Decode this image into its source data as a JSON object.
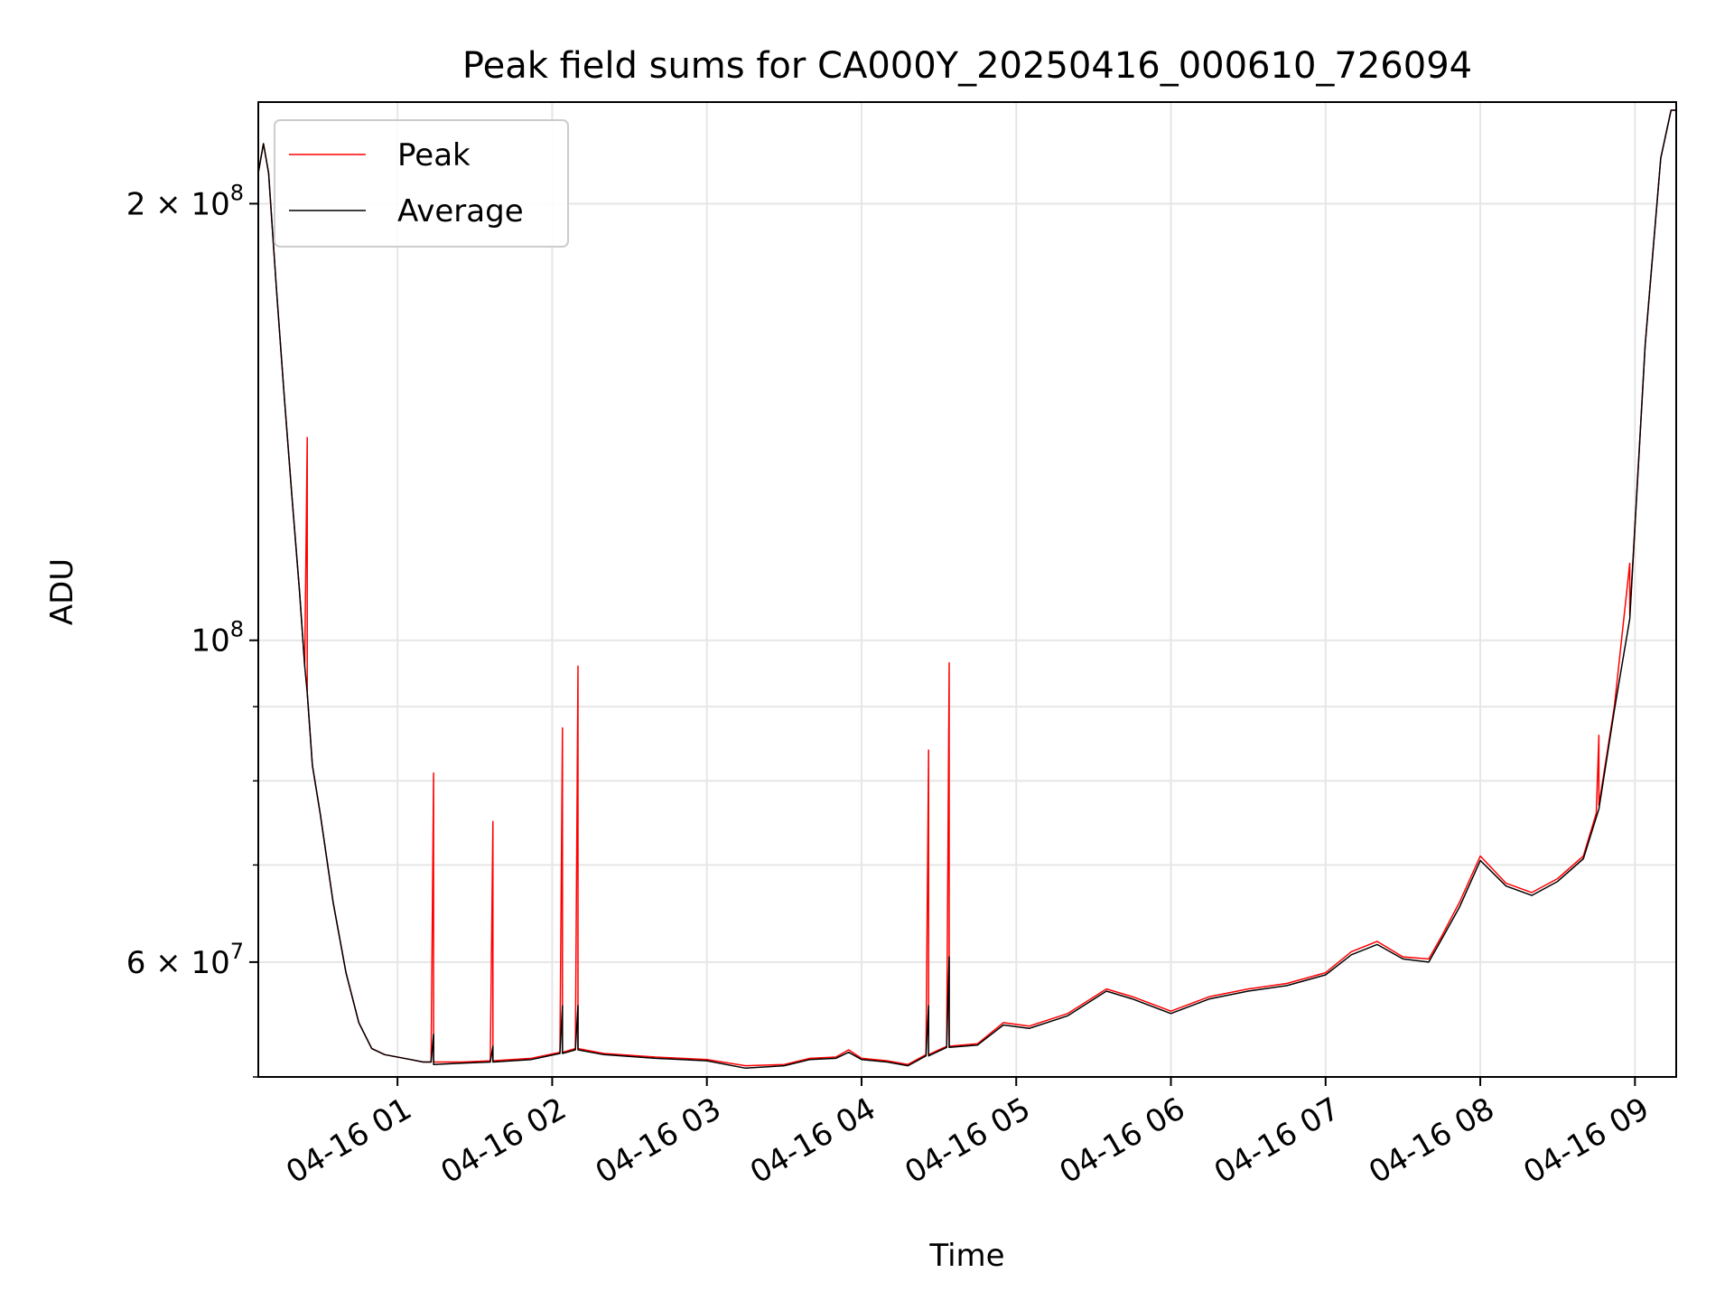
{
  "chart_data": {
    "type": "line",
    "title": "Peak field sums for CA000Y_20250416_000610_726094",
    "xlabel": "Time",
    "ylabel": "ADU",
    "y_scale": "log",
    "ylim": [
      50000000,
      235000000
    ],
    "xlim": [
      "2025-04-16 00:06",
      "2025-04-16 09:16"
    ],
    "grid": true,
    "legend_position": "upper left",
    "x_ticks": [
      {
        "t": "2025-04-16 01:00",
        "label": "04-16 01"
      },
      {
        "t": "2025-04-16 02:00",
        "label": "04-16 02"
      },
      {
        "t": "2025-04-16 03:00",
        "label": "04-16 03"
      },
      {
        "t": "2025-04-16 04:00",
        "label": "04-16 04"
      },
      {
        "t": "2025-04-16 05:00",
        "label": "04-16 05"
      },
      {
        "t": "2025-04-16 06:00",
        "label": "04-16 06"
      },
      {
        "t": "2025-04-16 07:00",
        "label": "04-16 07"
      },
      {
        "t": "2025-04-16 08:00",
        "label": "04-16 08"
      },
      {
        "t": "2025-04-16 09:00",
        "label": "04-16 09"
      }
    ],
    "y_ticks": [
      {
        "value": 200000000,
        "base": "2 × 10",
        "exp": "8"
      },
      {
        "value": 100000000,
        "base": "10",
        "exp": "8"
      },
      {
        "value": 60000000,
        "base": "6 × 10",
        "exp": "7"
      }
    ],
    "y_minor_ticks": [
      50000000,
      70000000,
      80000000,
      90000000
    ],
    "series": [
      {
        "name": "Peak",
        "color": "#ff0000",
        "points": [
          [
            "2025-04-16 00:06",
            210000000
          ],
          [
            "2025-04-16 00:08",
            220000000
          ],
          [
            "2025-04-16 00:10",
            210000000
          ],
          [
            "2025-04-16 00:13",
            175000000
          ],
          [
            "2025-04-16 00:16",
            148000000
          ],
          [
            "2025-04-16 00:19",
            126000000
          ],
          [
            "2025-04-16 00:22",
            108000000
          ],
          [
            "2025-04-16 00:24",
            96000000
          ],
          [
            "2025-04-16 00:25",
            138000000
          ],
          [
            "2025-04-16 00:25",
            92000000
          ],
          [
            "2025-04-16 00:27",
            82000000
          ],
          [
            "2025-04-16 00:30",
            76000000
          ],
          [
            "2025-04-16 00:35",
            66000000
          ],
          [
            "2025-04-16 00:40",
            59000000
          ],
          [
            "2025-04-16 00:45",
            54500000
          ],
          [
            "2025-04-16 00:50",
            52300000
          ],
          [
            "2025-04-16 00:55",
            51800000
          ],
          [
            "2025-04-16 01:05",
            51400000
          ],
          [
            "2025-04-16 01:10",
            51200000
          ],
          [
            "2025-04-16 01:13",
            51200000
          ],
          [
            "2025-04-16 01:14",
            81000000
          ],
          [
            "2025-04-16 01:14",
            51200000
          ],
          [
            "2025-04-16 01:25",
            51200000
          ],
          [
            "2025-04-16 01:36",
            51300000
          ],
          [
            "2025-04-16 01:37",
            75000000
          ],
          [
            "2025-04-16 01:37",
            51300000
          ],
          [
            "2025-04-16 01:52",
            51500000
          ],
          [
            "2025-04-16 02:03",
            52000000
          ],
          [
            "2025-04-16 02:04",
            87000000
          ],
          [
            "2025-04-16 02:04",
            52000000
          ],
          [
            "2025-04-16 02:09",
            52300000
          ],
          [
            "2025-04-16 02:10",
            96000000
          ],
          [
            "2025-04-16 02:10",
            52300000
          ],
          [
            "2025-04-16 02:20",
            51900000
          ],
          [
            "2025-04-16 02:40",
            51600000
          ],
          [
            "2025-04-16 03:00",
            51400000
          ],
          [
            "2025-04-16 03:15",
            50900000
          ],
          [
            "2025-04-16 03:30",
            51000000
          ],
          [
            "2025-04-16 03:40",
            51500000
          ],
          [
            "2025-04-16 03:50",
            51600000
          ],
          [
            "2025-04-16 03:55",
            52200000
          ],
          [
            "2025-04-16 04:00",
            51500000
          ],
          [
            "2025-04-16 04:10",
            51300000
          ],
          [
            "2025-04-16 04:18",
            51000000
          ],
          [
            "2025-04-16 04:25",
            51800000
          ],
          [
            "2025-04-16 04:26",
            84000000
          ],
          [
            "2025-04-16 04:26",
            51800000
          ],
          [
            "2025-04-16 04:33",
            52500000
          ],
          [
            "2025-04-16 04:34",
            96500000
          ],
          [
            "2025-04-16 04:34",
            52500000
          ],
          [
            "2025-04-16 04:45",
            52700000
          ],
          [
            "2025-04-16 04:55",
            54500000
          ],
          [
            "2025-04-16 05:05",
            54200000
          ],
          [
            "2025-04-16 05:20",
            55300000
          ],
          [
            "2025-04-16 05:35",
            57500000
          ],
          [
            "2025-04-16 05:45",
            56800000
          ],
          [
            "2025-04-16 06:00",
            55500000
          ],
          [
            "2025-04-16 06:15",
            56800000
          ],
          [
            "2025-04-16 06:30",
            57500000
          ],
          [
            "2025-04-16 06:45",
            58000000
          ],
          [
            "2025-04-16 07:00",
            59000000
          ],
          [
            "2025-04-16 07:10",
            61000000
          ],
          [
            "2025-04-16 07:20",
            62000000
          ],
          [
            "2025-04-16 07:30",
            60500000
          ],
          [
            "2025-04-16 07:40",
            60300000
          ],
          [
            "2025-04-16 07:45",
            62500000
          ],
          [
            "2025-04-16 07:52",
            66000000
          ],
          [
            "2025-04-16 08:00",
            71000000
          ],
          [
            "2025-04-16 08:10",
            68000000
          ],
          [
            "2025-04-16 08:20",
            67000000
          ],
          [
            "2025-04-16 08:30",
            68500000
          ],
          [
            "2025-04-16 08:40",
            71000000
          ],
          [
            "2025-04-16 08:45",
            76000000
          ],
          [
            "2025-04-16 08:46",
            86000000
          ],
          [
            "2025-04-16 08:46",
            77000000
          ],
          [
            "2025-04-16 08:52",
            90000000
          ],
          [
            "2025-04-16 08:58",
            113000000
          ],
          [
            "2025-04-16 08:58",
            104000000
          ],
          [
            "2025-04-16 09:04",
            160000000
          ],
          [
            "2025-04-16 09:10",
            215000000
          ],
          [
            "2025-04-16 09:14",
            232000000
          ],
          [
            "2025-04-16 09:16",
            232000000
          ]
        ]
      },
      {
        "name": "Average",
        "color": "#000000",
        "points": [
          [
            "2025-04-16 00:06",
            210000000
          ],
          [
            "2025-04-16 00:08",
            220000000
          ],
          [
            "2025-04-16 00:10",
            210000000
          ],
          [
            "2025-04-16 00:13",
            175000000
          ],
          [
            "2025-04-16 00:16",
            148000000
          ],
          [
            "2025-04-16 00:19",
            126000000
          ],
          [
            "2025-04-16 00:22",
            108000000
          ],
          [
            "2025-04-16 00:24",
            96000000
          ],
          [
            "2025-04-16 00:25",
            92000000
          ],
          [
            "2025-04-16 00:27",
            82000000
          ],
          [
            "2025-04-16 00:30",
            76000000
          ],
          [
            "2025-04-16 00:35",
            66000000
          ],
          [
            "2025-04-16 00:40",
            59000000
          ],
          [
            "2025-04-16 00:45",
            54500000
          ],
          [
            "2025-04-16 00:50",
            52300000
          ],
          [
            "2025-04-16 00:55",
            51800000
          ],
          [
            "2025-04-16 01:05",
            51400000
          ],
          [
            "2025-04-16 01:10",
            51200000
          ],
          [
            "2025-04-16 01:13",
            51200000
          ],
          [
            "2025-04-16 01:14",
            53500000
          ],
          [
            "2025-04-16 01:14",
            51000000
          ],
          [
            "2025-04-16 01:25",
            51100000
          ],
          [
            "2025-04-16 01:36",
            51200000
          ],
          [
            "2025-04-16 01:37",
            52500000
          ],
          [
            "2025-04-16 01:37",
            51200000
          ],
          [
            "2025-04-16 01:52",
            51400000
          ],
          [
            "2025-04-16 02:03",
            51900000
          ],
          [
            "2025-04-16 02:04",
            56000000
          ],
          [
            "2025-04-16 02:04",
            51900000
          ],
          [
            "2025-04-16 02:09",
            52200000
          ],
          [
            "2025-04-16 02:10",
            56000000
          ],
          [
            "2025-04-16 02:10",
            52200000
          ],
          [
            "2025-04-16 02:20",
            51800000
          ],
          [
            "2025-04-16 02:40",
            51500000
          ],
          [
            "2025-04-16 03:00",
            51300000
          ],
          [
            "2025-04-16 03:15",
            50700000
          ],
          [
            "2025-04-16 03:30",
            50900000
          ],
          [
            "2025-04-16 03:40",
            51400000
          ],
          [
            "2025-04-16 03:50",
            51500000
          ],
          [
            "2025-04-16 03:55",
            52000000
          ],
          [
            "2025-04-16 04:00",
            51400000
          ],
          [
            "2025-04-16 04:10",
            51200000
          ],
          [
            "2025-04-16 04:18",
            50900000
          ],
          [
            "2025-04-16 04:25",
            51700000
          ],
          [
            "2025-04-16 04:26",
            56000000
          ],
          [
            "2025-04-16 04:26",
            51700000
          ],
          [
            "2025-04-16 04:33",
            52400000
          ],
          [
            "2025-04-16 04:34",
            60500000
          ],
          [
            "2025-04-16 04:34",
            52400000
          ],
          [
            "2025-04-16 04:45",
            52600000
          ],
          [
            "2025-04-16 04:55",
            54300000
          ],
          [
            "2025-04-16 05:05",
            54000000
          ],
          [
            "2025-04-16 05:20",
            55100000
          ],
          [
            "2025-04-16 05:35",
            57300000
          ],
          [
            "2025-04-16 05:45",
            56600000
          ],
          [
            "2025-04-16 06:00",
            55300000
          ],
          [
            "2025-04-16 06:15",
            56600000
          ],
          [
            "2025-04-16 06:30",
            57300000
          ],
          [
            "2025-04-16 06:45",
            57800000
          ],
          [
            "2025-04-16 07:00",
            58800000
          ],
          [
            "2025-04-16 07:10",
            60700000
          ],
          [
            "2025-04-16 07:20",
            61700000
          ],
          [
            "2025-04-16 07:30",
            60300000
          ],
          [
            "2025-04-16 07:40",
            60000000
          ],
          [
            "2025-04-16 07:45",
            62200000
          ],
          [
            "2025-04-16 07:52",
            65500000
          ],
          [
            "2025-04-16 08:00",
            70500000
          ],
          [
            "2025-04-16 08:10",
            67700000
          ],
          [
            "2025-04-16 08:20",
            66700000
          ],
          [
            "2025-04-16 08:30",
            68200000
          ],
          [
            "2025-04-16 08:40",
            70700000
          ],
          [
            "2025-04-16 08:45",
            75500000
          ],
          [
            "2025-04-16 08:46",
            76500000
          ],
          [
            "2025-04-16 08:52",
            89500000
          ],
          [
            "2025-04-16 08:58",
            103500000
          ],
          [
            "2025-04-16 09:04",
            160000000
          ],
          [
            "2025-04-16 09:10",
            215000000
          ],
          [
            "2025-04-16 09:14",
            232000000
          ],
          [
            "2025-04-16 09:16",
            232000000
          ]
        ]
      }
    ]
  }
}
